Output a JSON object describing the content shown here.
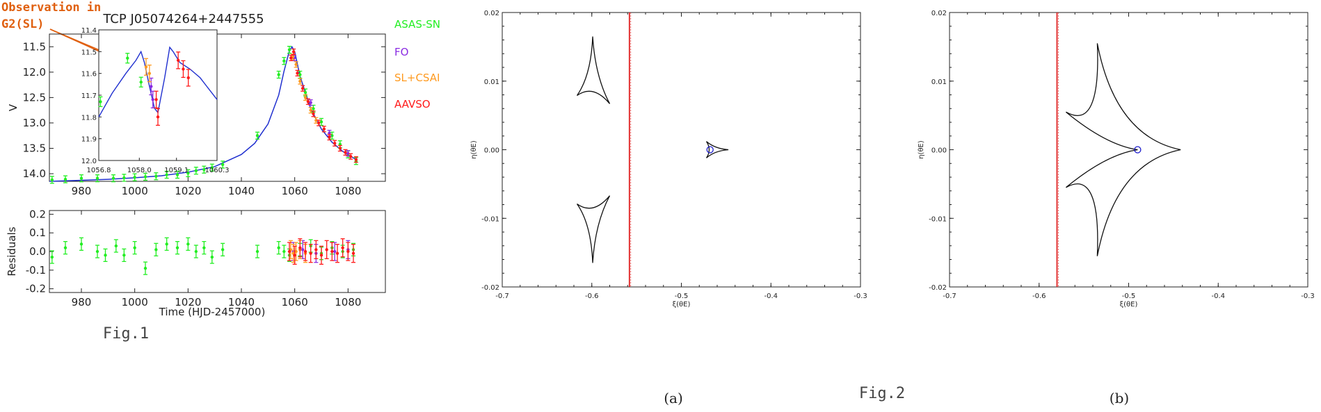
{
  "figure1": {
    "title": "TCP J05074264+2447555",
    "annotation_line1": "Observation in",
    "annotation_line2": "G2(SL)",
    "caption": "Fig.1",
    "legend": [
      {
        "label": "ASAS-SN",
        "color": "#22ee22"
      },
      {
        "label": "FO",
        "color": "#8a2be2"
      },
      {
        "label": "SL+CSAI",
        "color": "#ff9a1f"
      },
      {
        "label": "AAVSO",
        "color": "#ff1a1a"
      }
    ],
    "annotation_color": "#e06010",
    "model_color": "#1f2fcf"
  },
  "figure2": {
    "caption": "Fig.2",
    "panel_a_label": "(a)",
    "panel_b_label": "(b)",
    "xlabel": "ξ(θE)",
    "ylabel": "η(θE)",
    "line_color": "#e02020",
    "source_color": "#1a1acc"
  },
  "chart_data": [
    {
      "type": "scatter",
      "name": "main-lightcurve",
      "xlabel": "",
      "ylabel": "V",
      "xlim": [
        968,
        1094
      ],
      "ylim": [
        14.15,
        11.25
      ],
      "y_inverted": true,
      "xticks": [
        980,
        1000,
        1020,
        1040,
        1060,
        1080
      ],
      "yticks": [
        11.5,
        12.0,
        12.5,
        13.0,
        13.5,
        14.0
      ],
      "model_curve": {
        "x": [
          968,
          980,
          990,
          1000,
          1010,
          1020,
          1030,
          1040,
          1045,
          1050,
          1054,
          1056,
          1058,
          1059,
          1060,
          1062,
          1066,
          1070,
          1074,
          1078,
          1083
        ],
        "y": [
          14.15,
          14.13,
          14.11,
          14.08,
          14.04,
          13.97,
          13.86,
          13.62,
          13.4,
          13.02,
          12.45,
          11.98,
          11.58,
          11.5,
          11.6,
          12.08,
          12.72,
          13.12,
          13.38,
          13.56,
          13.72
        ]
      },
      "series": [
        {
          "name": "ASAS-SN",
          "x": [
            969,
            974,
            980,
            986,
            992,
            996,
            1000,
            1004,
            1008,
            1012,
            1016,
            1020,
            1023,
            1026,
            1029,
            1033,
            1046,
            1054,
            1056,
            1058,
            1062,
            1064,
            1067,
            1070,
            1074,
            1077,
            1080,
            1083
          ],
          "y": [
            14.12,
            14.11,
            14.09,
            14.09,
            14.09,
            14.08,
            14.07,
            14.06,
            14.05,
            14.02,
            14.02,
            13.99,
            13.94,
            13.92,
            13.88,
            13.82,
            13.25,
            12.05,
            11.78,
            11.56,
            12.05,
            12.4,
            12.72,
            12.98,
            13.25,
            13.42,
            13.62,
            13.75
          ]
        },
        {
          "name": "FO",
          "x": [
            1059.8,
            1066,
            1073,
            1080
          ],
          "y": [
            11.72,
            12.6,
            13.2,
            13.6
          ]
        },
        {
          "name": "SL+CSAI",
          "x": [
            1059.3,
            1060.5,
            1062,
            1064,
            1066,
            1068
          ],
          "y": [
            11.7,
            11.85,
            12.18,
            12.5,
            12.75,
            12.95
          ]
        },
        {
          "name": "AAVSO",
          "x": [
            1058.6,
            1059.6,
            1061,
            1063,
            1065,
            1067,
            1069,
            1071,
            1073,
            1075,
            1077,
            1079,
            1081,
            1083
          ],
          "y": [
            11.72,
            11.6,
            12.02,
            12.32,
            12.58,
            12.82,
            13.0,
            13.12,
            13.28,
            13.4,
            13.5,
            13.58,
            13.66,
            13.72
          ]
        }
      ]
    },
    {
      "type": "line",
      "name": "inset-zoom",
      "xlim": [
        1056.8,
        1060.3
      ],
      "ylim": [
        12.0,
        11.4
      ],
      "y_inverted": true,
      "xticks": [
        1056.8,
        1058.0,
        1059.1,
        1060.3
      ],
      "yticks": [
        11.4,
        11.5,
        11.6,
        11.7,
        11.8,
        11.9,
        12.0
      ],
      "model_curve": {
        "x": [
          1056.8,
          1057.2,
          1057.6,
          1057.9,
          1058.05,
          1058.15,
          1058.3,
          1058.45,
          1058.55,
          1058.75,
          1058.9,
          1059.0,
          1059.2,
          1059.5,
          1059.8,
          1060.0,
          1060.3
        ],
        "y": [
          11.8,
          11.69,
          11.6,
          11.54,
          11.5,
          11.55,
          11.66,
          11.76,
          11.78,
          11.62,
          11.48,
          11.5,
          11.55,
          11.58,
          11.62,
          11.66,
          11.72
        ]
      },
      "series": [
        {
          "name": "ASAS-SN",
          "x": [
            1056.85,
            1057.65,
            1058.05
          ],
          "y": [
            11.73,
            11.53,
            11.64
          ]
        },
        {
          "name": "FO",
          "x": [
            1058.35,
            1058.4
          ],
          "y": [
            11.66,
            11.72
          ]
        },
        {
          "name": "SL+CSAI",
          "x": [
            1058.2,
            1058.3
          ],
          "y": [
            11.57,
            11.6
          ]
        },
        {
          "name": "AAVSO",
          "x": [
            1058.5,
            1058.55,
            1059.15,
            1059.3,
            1059.45
          ],
          "y": [
            11.72,
            11.8,
            11.54,
            11.58,
            11.62
          ]
        }
      ]
    },
    {
      "type": "scatter",
      "name": "residuals",
      "xlabel": "Time (HJD-2457000)",
      "ylabel": "Residuals",
      "xlim": [
        968,
        1094
      ],
      "ylim": [
        -0.22,
        0.22
      ],
      "xticks": [
        980,
        1000,
        1020,
        1040,
        1060,
        1080
      ],
      "yticks": [
        -0.2,
        -0.1,
        0.0,
        0.1,
        0.2
      ],
      "series": [
        {
          "name": "ASAS-SN",
          "x": [
            969,
            974,
            980,
            986,
            989,
            993,
            996,
            1000,
            1004,
            1008,
            1012,
            1016,
            1020,
            1023,
            1026,
            1029,
            1033,
            1046,
            1054,
            1056,
            1058,
            1062,
            1066,
            1070,
            1074,
            1078,
            1082
          ],
          "y": [
            -0.03,
            0.02,
            0.04,
            0.0,
            -0.02,
            0.03,
            -0.02,
            0.02,
            -0.09,
            0.01,
            0.04,
            0.02,
            0.04,
            0.0,
            0.02,
            -0.03,
            0.01,
            0.0,
            0.02,
            0.0,
            -0.02,
            0.01,
            0.03,
            -0.01,
            0.02,
            0.0,
            0.01
          ]
        },
        {
          "name": "FO",
          "x": [
            1059.5,
            1063,
            1068,
            1075,
            1080
          ],
          "y": [
            0.0,
            0.01,
            -0.01,
            0.0,
            0.01
          ]
        },
        {
          "name": "SL+CSAI",
          "x": [
            1058.5,
            1059.5,
            1060.5,
            1062,
            1064
          ],
          "y": [
            0.01,
            -0.01,
            0.0,
            0.01,
            -0.01
          ]
        },
        {
          "name": "AAVSO",
          "x": [
            1058,
            1060,
            1062,
            1064,
            1066,
            1068,
            1070,
            1072,
            1074,
            1076,
            1078,
            1080,
            1082
          ],
          "y": [
            0.0,
            -0.02,
            0.02,
            0.0,
            -0.01,
            0.01,
            -0.02,
            0.01,
            0.0,
            -0.01,
            0.02,
            0.0,
            -0.01
          ]
        }
      ]
    },
    {
      "type": "line",
      "name": "caustic-panel-a",
      "xlabel": "ξ(θE)",
      "ylabel": "η(θE)",
      "xlim": [
        -0.7,
        -0.3
      ],
      "ylim": [
        -0.02,
        0.02
      ],
      "xticks": [
        -0.7,
        -0.6,
        -0.5,
        -0.4,
        -0.3
      ],
      "yticks": [
        -0.02,
        -0.01,
        0.0,
        0.01,
        0.02
      ],
      "source_trajectory_x": -0.558,
      "source_position": {
        "x": -0.468,
        "y": 0.0
      },
      "caustics": [
        {
          "name": "upper",
          "points": [
            [
              -0.599,
              0.0165
            ],
            [
              -0.6165,
              0.0079
            ],
            [
              -0.58,
              0.0067
            ]
          ]
        },
        {
          "name": "lower",
          "points": [
            [
              -0.599,
              -0.0165
            ],
            [
              -0.6165,
              -0.0079
            ],
            [
              -0.58,
              -0.0067
            ]
          ]
        },
        {
          "name": "central",
          "points": [
            [
              -0.4475,
              0.0
            ],
            [
              -0.472,
              0.0012
            ],
            [
              -0.472,
              -0.0012
            ]
          ]
        }
      ]
    },
    {
      "type": "line",
      "name": "caustic-panel-b",
      "xlabel": "ξ(θE)",
      "ylabel": "η(θE)",
      "xlim": [
        -0.7,
        -0.3
      ],
      "ylim": [
        -0.02,
        0.02
      ],
      "xticks": [
        -0.7,
        -0.6,
        -0.5,
        -0.4,
        -0.3
      ],
      "yticks": [
        -0.02,
        -0.01,
        0.0,
        0.01,
        0.02
      ],
      "source_trajectory_x": -0.58,
      "source_position": {
        "x": -0.49,
        "y": 0.0
      },
      "caustics": [
        {
          "name": "resonant",
          "points": [
            [
              -0.535,
              0.0155
            ],
            [
              -0.57,
              0.0055
            ],
            [
              -0.49,
              0.0
            ],
            [
              -0.57,
              -0.0055
            ],
            [
              -0.535,
              -0.0155
            ],
            [
              -0.442,
              0.0
            ]
          ]
        }
      ]
    }
  ]
}
